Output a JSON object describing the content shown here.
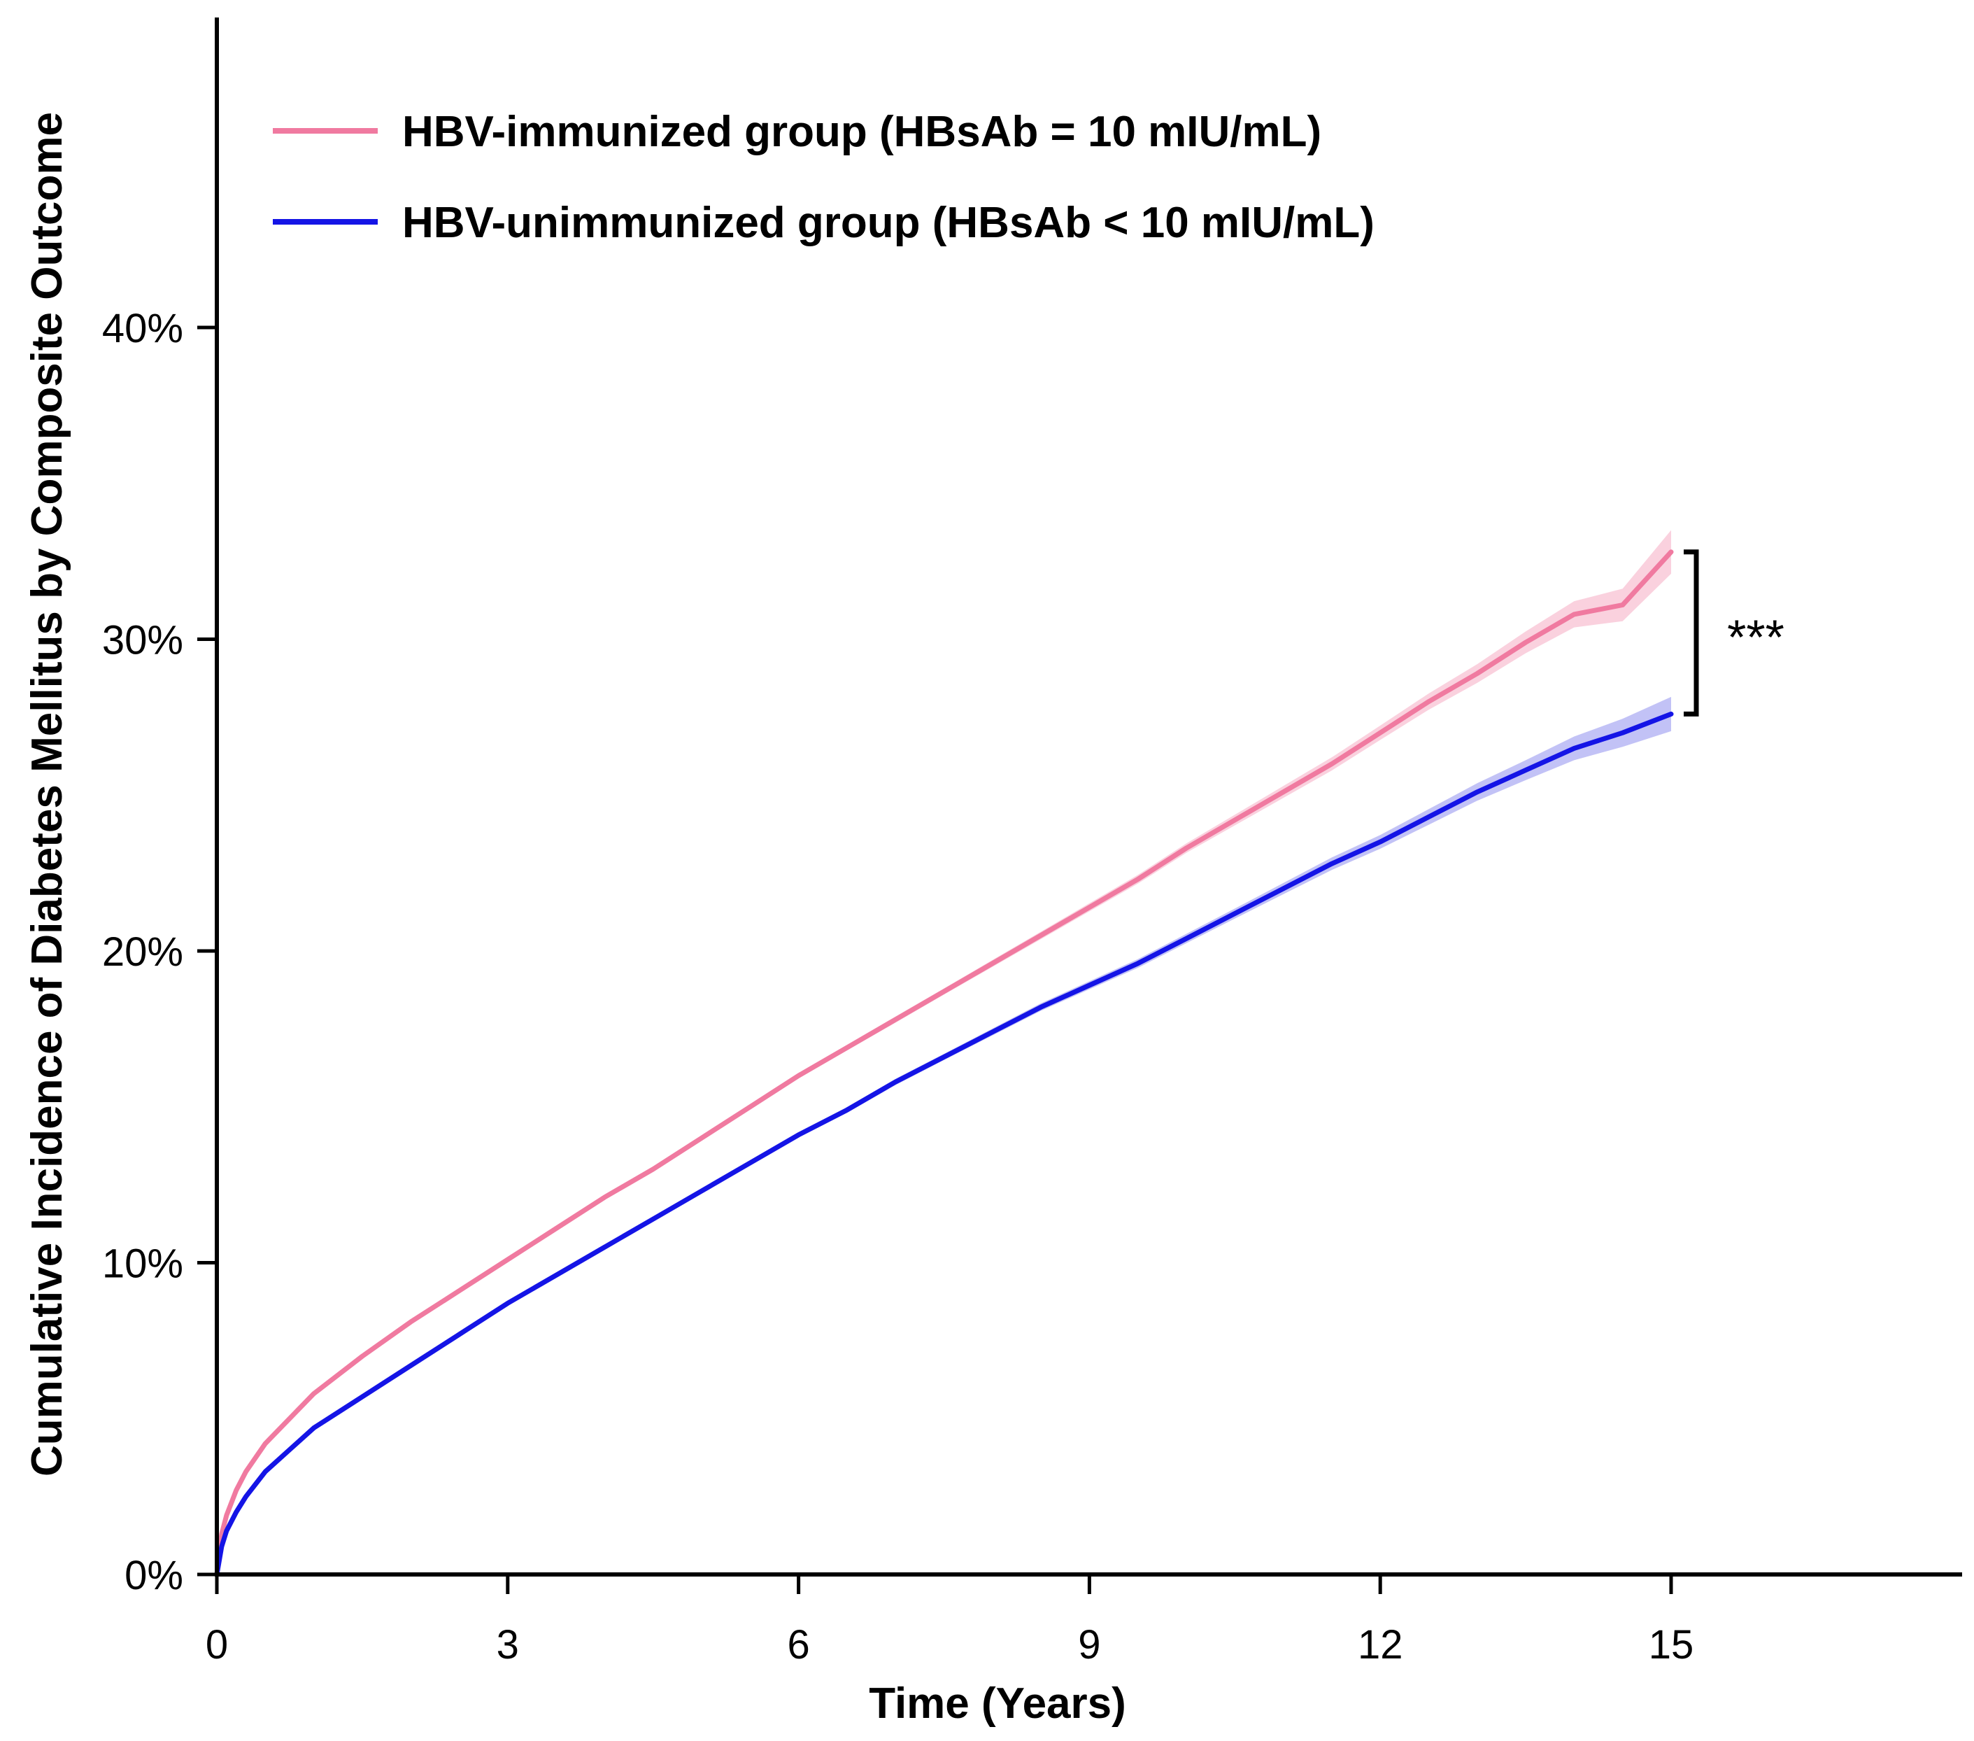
{
  "chart_data": {
    "type": "line",
    "title": "",
    "xlabel": "Time (Years)",
    "ylabel": "Cumulative Incidence of Diabetes Mellitus by Composite Outcome",
    "xlim": [
      0,
      18
    ],
    "ylim": [
      0,
      50
    ],
    "x_ticks": [
      0,
      3,
      6,
      9,
      12,
      15
    ],
    "x_tick_labels": [
      "0",
      "3",
      "6",
      "9",
      "12",
      "15"
    ],
    "y_ticks": [
      0,
      10,
      20,
      30,
      40
    ],
    "y_tick_labels": [
      "0%",
      "10%",
      "20%",
      "30%",
      "40%"
    ],
    "grid": false,
    "legend_position": "top-left",
    "annotation": "***",
    "series": [
      {
        "name": "HBV-immunized group (HBsAb = 10 mIU/mL)",
        "color": "#f07aa0",
        "band_color": "#f7b3c8",
        "x": [
          0,
          0.05,
          0.1,
          0.2,
          0.3,
          0.5,
          0.75,
          1,
          1.5,
          2,
          2.5,
          3,
          3.5,
          4,
          4.5,
          5,
          5.5,
          6,
          6.5,
          7,
          7.5,
          8,
          8.5,
          9,
          9.5,
          10,
          10.5,
          11,
          11.5,
          12,
          12.5,
          13,
          13.5,
          14,
          14.5,
          15
        ],
        "y": [
          0.0,
          1.3,
          1.9,
          2.7,
          3.3,
          4.2,
          5.0,
          5.8,
          7.0,
          8.1,
          9.1,
          10.1,
          11.1,
          12.1,
          13.0,
          14.0,
          15.0,
          16.0,
          16.9,
          17.8,
          18.7,
          19.6,
          20.5,
          21.4,
          22.3,
          23.3,
          24.2,
          25.1,
          26.0,
          27.0,
          28.0,
          28.9,
          29.9,
          30.8,
          31.1,
          32.8
        ],
        "ci_halfwidth": [
          0.0,
          0.05,
          0.05,
          0.05,
          0.05,
          0.05,
          0.05,
          0.05,
          0.05,
          0.05,
          0.05,
          0.06,
          0.06,
          0.06,
          0.07,
          0.07,
          0.08,
          0.08,
          0.09,
          0.1,
          0.1,
          0.11,
          0.12,
          0.13,
          0.14,
          0.15,
          0.17,
          0.19,
          0.21,
          0.23,
          0.26,
          0.3,
          0.35,
          0.42,
          0.52,
          0.7
        ]
      },
      {
        "name": "HBV-unimmunized group (HBsAb < 10 mIU/mL)",
        "color": "#1414e6",
        "band_color": "#9a9af0",
        "x": [
          0,
          0.05,
          0.1,
          0.2,
          0.3,
          0.5,
          0.75,
          1,
          1.5,
          2,
          2.5,
          3,
          3.5,
          4,
          4.5,
          5,
          5.5,
          6,
          6.5,
          7,
          7.5,
          8,
          8.5,
          9,
          9.5,
          10,
          10.5,
          11,
          11.5,
          12,
          12.5,
          13,
          13.5,
          14,
          14.5,
          15
        ],
        "y": [
          0.0,
          0.9,
          1.4,
          2.0,
          2.5,
          3.3,
          4.0,
          4.7,
          5.7,
          6.7,
          7.7,
          8.7,
          9.6,
          10.5,
          11.4,
          12.3,
          13.2,
          14.1,
          14.9,
          15.8,
          16.6,
          17.4,
          18.2,
          18.9,
          19.6,
          20.4,
          21.2,
          22.0,
          22.8,
          23.5,
          24.3,
          25.1,
          25.8,
          26.5,
          27.0,
          27.6
        ],
        "ci_halfwidth": [
          0.0,
          0.05,
          0.05,
          0.05,
          0.05,
          0.05,
          0.05,
          0.05,
          0.05,
          0.05,
          0.05,
          0.06,
          0.06,
          0.06,
          0.07,
          0.07,
          0.08,
          0.08,
          0.09,
          0.1,
          0.1,
          0.11,
          0.12,
          0.13,
          0.14,
          0.15,
          0.16,
          0.18,
          0.2,
          0.22,
          0.25,
          0.28,
          0.32,
          0.38,
          0.45,
          0.55
        ]
      }
    ]
  }
}
